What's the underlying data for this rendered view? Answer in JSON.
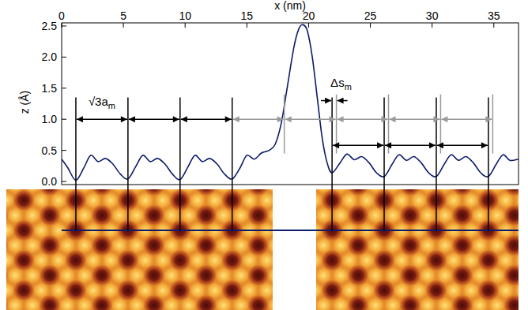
{
  "chart_data": {
    "type": "line",
    "x_label": "x (nm)",
    "y_label": "z (Å)",
    "color": "#0d1b6b",
    "x": [
      0,
      0.5,
      1.15,
      1.8,
      2.35,
      2.95,
      3.55,
      4.15,
      4.75,
      5.37,
      6.0,
      6.57,
      7.17,
      7.77,
      8.37,
      8.97,
      9.59,
      10.22,
      10.79,
      11.39,
      11.99,
      12.59,
      13.19,
      13.81,
      14.45,
      15.0,
      15.6,
      16.2,
      16.8,
      17.3,
      17.8,
      18.3,
      18.8,
      19.2,
      19.55,
      19.9,
      20.3,
      20.7,
      21.1,
      21.5,
      21.9,
      22.55,
      23.1,
      23.7,
      24.3,
      24.9,
      25.5,
      26.12,
      26.77,
      27.32,
      27.92,
      28.52,
      29.12,
      29.72,
      30.34,
      30.99,
      31.54,
      32.14,
      32.74,
      33.34,
      33.94,
      34.56,
      35.2,
      35.75,
      36.3,
      37
    ],
    "values": [
      0.36,
      0.22,
      0.02,
      0.22,
      0.42,
      0.32,
      0.37,
      0.28,
      0.12,
      0.04,
      0.24,
      0.42,
      0.32,
      0.37,
      0.28,
      0.12,
      0.03,
      0.23,
      0.42,
      0.32,
      0.37,
      0.28,
      0.12,
      0.04,
      0.22,
      0.42,
      0.36,
      0.46,
      0.5,
      0.6,
      0.95,
      1.55,
      2.15,
      2.45,
      2.52,
      2.42,
      2.0,
      1.35,
      0.7,
      0.3,
      0.14,
      0.3,
      0.44,
      0.35,
      0.4,
      0.3,
      0.14,
      0.08,
      0.28,
      0.43,
      0.34,
      0.4,
      0.3,
      0.14,
      0.08,
      0.28,
      0.43,
      0.34,
      0.4,
      0.3,
      0.14,
      0.08,
      0.28,
      0.43,
      0.34,
      0.36
    ],
    "xlim": [
      0,
      37
    ],
    "ylim": [
      -0.05,
      2.55
    ],
    "xticks": [
      0,
      5,
      10,
      15,
      20,
      25,
      30,
      35
    ],
    "yticks": [
      {
        "value": 0,
        "label": "0.0"
      },
      0.5,
      {
        "value": 1,
        "label": "1.0"
      },
      1.5,
      {
        "value": 2,
        "label": "2.0"
      },
      2.5
    ],
    "lattice_lines_left": [
      1.15,
      5.37,
      9.59,
      13.81
    ],
    "lattice_lines_extrapolated": [
      18.03,
      22.25,
      26.47,
      30.69,
      34.91
    ],
    "lattice_lines_right": [
      21.9,
      26.12,
      30.34,
      34.56
    ],
    "annotations": [
      {
        "text": "√3a",
        "subscript": "m"
      },
      {
        "text": "Δs",
        "subscript": "m"
      }
    ]
  }
}
